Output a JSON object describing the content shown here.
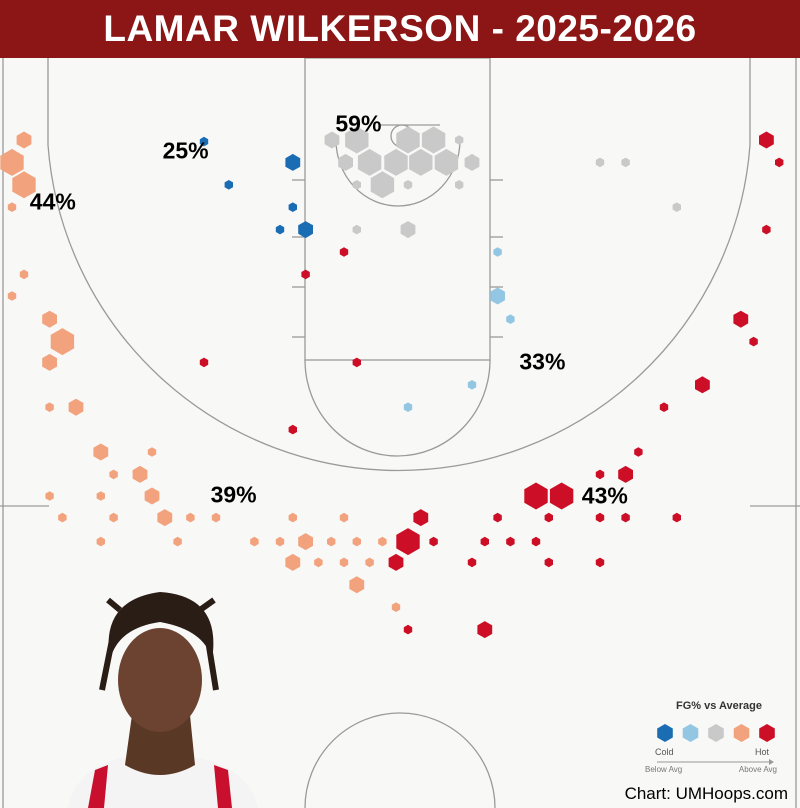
{
  "header": {
    "title": "LAMAR WILKERSON - 2025-2026"
  },
  "credit": "Chart: UMHoops.com",
  "legend": {
    "title": "FG% vs Average",
    "cold": "Cold",
    "hot": "Hot",
    "below": "Below Avg",
    "above": "Above Avg",
    "colors": [
      "#1a6db3",
      "#93c6e2",
      "#c9c9c9",
      "#f2a27c",
      "#cc0e26"
    ]
  },
  "chart_data": {
    "type": "hexbin-shot-chart",
    "units": "feet (x from left sideline, y from baseline)",
    "levels": [
      "Cold",
      "Below Avg",
      "Average",
      "Above Avg",
      "Hot"
    ],
    "zone_labels": [
      {
        "text": "59%",
        "x": 22.4,
        "y": 4.0
      },
      {
        "text": "25%",
        "x": 11.6,
        "y": 5.7
      },
      {
        "text": "44%",
        "x": 3.3,
        "y": 8.9
      },
      {
        "text": "33%",
        "x": 33.9,
        "y": 18.9
      },
      {
        "text": "39%",
        "x": 14.6,
        "y": 27.2
      },
      {
        "text": "43%",
        "x": 37.8,
        "y": 27.25
      }
    ],
    "hexes": [
      {
        "x": 1.5,
        "y": 5,
        "size": 2,
        "level": 3
      },
      {
        "x": 0.75,
        "y": 6.4,
        "size": 3,
        "level": 3
      },
      {
        "x": 1.5,
        "y": 7.8,
        "size": 3,
        "level": 3
      },
      {
        "x": 0.75,
        "y": 9.2,
        "size": 1,
        "level": 3
      },
      {
        "x": 1.5,
        "y": 13.4,
        "size": 1,
        "level": 3
      },
      {
        "x": 0.75,
        "y": 14.75,
        "size": 1,
        "level": 3
      },
      {
        "x": 3.1,
        "y": 16.2,
        "size": 2,
        "level": 3
      },
      {
        "x": 3.9,
        "y": 17.6,
        "size": 3,
        "level": 3
      },
      {
        "x": 3.1,
        "y": 18.9,
        "size": 2,
        "level": 3
      },
      {
        "x": 3.1,
        "y": 21.7,
        "size": 1,
        "level": 3
      },
      {
        "x": 4.75,
        "y": 21.7,
        "size": 2,
        "level": 3
      },
      {
        "x": 6.3,
        "y": 24.5,
        "size": 2,
        "level": 3
      },
      {
        "x": 9.5,
        "y": 24.5,
        "size": 1,
        "level": 3
      },
      {
        "x": 7.1,
        "y": 25.9,
        "size": 1,
        "level": 3
      },
      {
        "x": 8.75,
        "y": 25.9,
        "size": 2,
        "level": 3
      },
      {
        "x": 3.1,
        "y": 27.25,
        "size": 1,
        "level": 3
      },
      {
        "x": 6.3,
        "y": 27.25,
        "size": 1,
        "level": 3
      },
      {
        "x": 9.5,
        "y": 27.25,
        "size": 2,
        "level": 3
      },
      {
        "x": 3.9,
        "y": 28.6,
        "size": 1,
        "level": 3
      },
      {
        "x": 7.1,
        "y": 28.6,
        "size": 1,
        "level": 3
      },
      {
        "x": 10.3,
        "y": 28.6,
        "size": 2,
        "level": 3
      },
      {
        "x": 11.9,
        "y": 28.6,
        "size": 1,
        "level": 3
      },
      {
        "x": 13.5,
        "y": 28.6,
        "size": 1,
        "level": 3
      },
      {
        "x": 6.3,
        "y": 30.1,
        "size": 1,
        "level": 3
      },
      {
        "x": 11.1,
        "y": 30.1,
        "size": 1,
        "level": 3
      },
      {
        "x": 18.3,
        "y": 28.6,
        "size": 1,
        "level": 3
      },
      {
        "x": 21.5,
        "y": 28.6,
        "size": 1,
        "level": 3
      },
      {
        "x": 15.9,
        "y": 30.1,
        "size": 1,
        "level": 3
      },
      {
        "x": 17.5,
        "y": 30.1,
        "size": 1,
        "level": 3
      },
      {
        "x": 19.1,
        "y": 30.1,
        "size": 2,
        "level": 3
      },
      {
        "x": 20.7,
        "y": 30.1,
        "size": 1,
        "level": 3
      },
      {
        "x": 22.3,
        "y": 30.1,
        "size": 1,
        "level": 3
      },
      {
        "x": 23.9,
        "y": 30.1,
        "size": 1,
        "level": 3
      },
      {
        "x": 18.3,
        "y": 31.4,
        "size": 2,
        "level": 3
      },
      {
        "x": 19.9,
        "y": 31.4,
        "size": 1,
        "level": 3
      },
      {
        "x": 21.5,
        "y": 31.4,
        "size": 1,
        "level": 3
      },
      {
        "x": 23.1,
        "y": 31.4,
        "size": 1,
        "level": 3
      },
      {
        "x": 22.3,
        "y": 32.8,
        "size": 2,
        "level": 3
      },
      {
        "x": 24.75,
        "y": 34.2,
        "size": 1,
        "level": 3
      },
      {
        "x": 12.75,
        "y": 5.1,
        "size": 1,
        "level": 0
      },
      {
        "x": 18.3,
        "y": 6.4,
        "size": 2,
        "level": 0
      },
      {
        "x": 14.3,
        "y": 7.8,
        "size": 1,
        "level": 0
      },
      {
        "x": 18.3,
        "y": 9.2,
        "size": 1,
        "level": 0
      },
      {
        "x": 17.5,
        "y": 10.6,
        "size": 1,
        "level": 0
      },
      {
        "x": 19.1,
        "y": 10.6,
        "size": 2,
        "level": 0
      },
      {
        "x": 19.1,
        "y": 13.4,
        "size": 1,
        "level": 4
      },
      {
        "x": 21.5,
        "y": 12,
        "size": 1,
        "level": 4
      },
      {
        "x": 12.75,
        "y": 18.9,
        "size": 1,
        "level": 4
      },
      {
        "x": 22.3,
        "y": 18.9,
        "size": 1,
        "level": 4
      },
      {
        "x": 18.3,
        "y": 23.1,
        "size": 1,
        "level": 4
      },
      {
        "x": 22.3,
        "y": 10.6,
        "size": 1,
        "level": 2
      },
      {
        "x": 25.5,
        "y": 10.6,
        "size": 2,
        "level": 2
      },
      {
        "x": 20.75,
        "y": 5,
        "size": 2,
        "level": 2
      },
      {
        "x": 22.3,
        "y": 5,
        "size": 3,
        "level": 2
      },
      {
        "x": 25.5,
        "y": 5,
        "size": 3,
        "level": 2
      },
      {
        "x": 27.1,
        "y": 5,
        "size": 3,
        "level": 2
      },
      {
        "x": 28.7,
        "y": 5,
        "size": 1,
        "level": 2
      },
      {
        "x": 21.6,
        "y": 6.4,
        "size": 2,
        "level": 2
      },
      {
        "x": 23.1,
        "y": 6.4,
        "size": 3,
        "level": 2
      },
      {
        "x": 24.75,
        "y": 6.4,
        "size": 3,
        "level": 2
      },
      {
        "x": 26.3,
        "y": 6.4,
        "size": 3,
        "level": 2
      },
      {
        "x": 27.9,
        "y": 6.4,
        "size": 3,
        "level": 2
      },
      {
        "x": 29.5,
        "y": 6.4,
        "size": 2,
        "level": 2
      },
      {
        "x": 22.3,
        "y": 7.8,
        "size": 1,
        "level": 2
      },
      {
        "x": 23.9,
        "y": 7.8,
        "size": 3,
        "level": 2
      },
      {
        "x": 25.5,
        "y": 7.8,
        "size": 1,
        "level": 2
      },
      {
        "x": 28.7,
        "y": 7.8,
        "size": 1,
        "level": 2
      },
      {
        "x": 37.5,
        "y": 6.4,
        "size": 1,
        "level": 2
      },
      {
        "x": 39.1,
        "y": 6.4,
        "size": 1,
        "level": 2
      },
      {
        "x": 42.3,
        "y": 9.2,
        "size": 1,
        "level": 2
      },
      {
        "x": 31.1,
        "y": 12,
        "size": 1,
        "level": 1
      },
      {
        "x": 31.1,
        "y": 14.75,
        "size": 2,
        "level": 1
      },
      {
        "x": 31.9,
        "y": 16.2,
        "size": 1,
        "level": 1
      },
      {
        "x": 29.5,
        "y": 20.3,
        "size": 1,
        "level": 1
      },
      {
        "x": 25.5,
        "y": 21.7,
        "size": 1,
        "level": 1
      },
      {
        "x": 47.9,
        "y": 5,
        "size": 2,
        "level": 4
      },
      {
        "x": 48.7,
        "y": 6.4,
        "size": 1,
        "level": 4
      },
      {
        "x": 47.9,
        "y": 10.6,
        "size": 1,
        "level": 4
      },
      {
        "x": 46.3,
        "y": 16.2,
        "size": 2,
        "level": 4
      },
      {
        "x": 47.1,
        "y": 17.6,
        "size": 1,
        "level": 4
      },
      {
        "x": 43.9,
        "y": 20.3,
        "size": 2,
        "level": 4
      },
      {
        "x": 41.5,
        "y": 21.7,
        "size": 1,
        "level": 4
      },
      {
        "x": 39.9,
        "y": 24.5,
        "size": 1,
        "level": 4
      },
      {
        "x": 39.1,
        "y": 25.9,
        "size": 2,
        "level": 4
      },
      {
        "x": 37.5,
        "y": 25.9,
        "size": 1,
        "level": 4
      },
      {
        "x": 33.5,
        "y": 27.25,
        "size": 3,
        "level": 4
      },
      {
        "x": 35.1,
        "y": 27.25,
        "size": 3,
        "level": 4
      },
      {
        "x": 31.1,
        "y": 28.6,
        "size": 1,
        "level": 4
      },
      {
        "x": 34.3,
        "y": 28.6,
        "size": 1,
        "level": 4
      },
      {
        "x": 37.5,
        "y": 28.6,
        "size": 1,
        "level": 4
      },
      {
        "x": 39.1,
        "y": 28.6,
        "size": 1,
        "level": 4
      },
      {
        "x": 42.3,
        "y": 28.6,
        "size": 1,
        "level": 4
      },
      {
        "x": 26.3,
        "y": 28.6,
        "size": 2,
        "level": 4
      },
      {
        "x": 25.5,
        "y": 30.1,
        "size": 3,
        "level": 4
      },
      {
        "x": 27.1,
        "y": 30.1,
        "size": 1,
        "level": 4
      },
      {
        "x": 30.3,
        "y": 30.1,
        "size": 1,
        "level": 4
      },
      {
        "x": 31.9,
        "y": 30.1,
        "size": 1,
        "level": 4
      },
      {
        "x": 33.5,
        "y": 30.1,
        "size": 1,
        "level": 4
      },
      {
        "x": 24.75,
        "y": 31.4,
        "size": 2,
        "level": 4
      },
      {
        "x": 29.5,
        "y": 31.4,
        "size": 1,
        "level": 4
      },
      {
        "x": 34.3,
        "y": 31.4,
        "size": 1,
        "level": 4
      },
      {
        "x": 37.5,
        "y": 31.4,
        "size": 1,
        "level": 4
      },
      {
        "x": 25.5,
        "y": 35.6,
        "size": 1,
        "level": 4
      },
      {
        "x": 30.3,
        "y": 35.6,
        "size": 2,
        "level": 4
      }
    ]
  }
}
